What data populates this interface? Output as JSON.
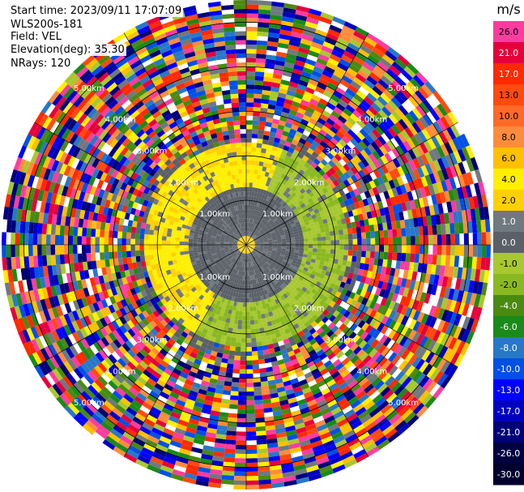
{
  "header": {
    "start_time": "Start time: 2023/09/11 17:07:09",
    "instrument": "WLS200s-181",
    "field": "Field: VEL",
    "elevation": "Elevation(deg): 35.30",
    "nrays": "NRays: 120"
  },
  "colorbar": {
    "unit": "m/s",
    "levels": [
      {
        "label": "26.0",
        "color": "#ff3ca0"
      },
      {
        "label": "21.0",
        "color": "#e6003c"
      },
      {
        "label": "17.0",
        "color": "#ff2a00"
      },
      {
        "label": "13.0",
        "color": "#ff4a10"
      },
      {
        "label": "10.0",
        "color": "#ff6a2a"
      },
      {
        "label": "8.0",
        "color": "#ff8c3c"
      },
      {
        "label": "6.0",
        "color": "#ffc000"
      },
      {
        "label": "4.0",
        "color": "#ffef00"
      },
      {
        "label": "2.0",
        "color": "#ffd000"
      },
      {
        "label": "1.0",
        "color": "#707880"
      },
      {
        "label": "0.0",
        "color": "#5a6068"
      },
      {
        "label": "-1.0",
        "color": "#a8c830"
      },
      {
        "label": "-2.0",
        "color": "#8ab820"
      },
      {
        "label": "-4.0",
        "color": "#4a8a10"
      },
      {
        "label": "-6.0",
        "color": "#1a8a1a"
      },
      {
        "label": "-8.0",
        "color": "#2878c8"
      },
      {
        "label": "-10.0",
        "color": "#0050e6"
      },
      {
        "label": "-13.0",
        "color": "#0000ff"
      },
      {
        "label": "-17.0",
        "color": "#0000c0"
      },
      {
        "label": "-21.0",
        "color": "#00007a"
      },
      {
        "label": "-26.0",
        "color": "#000040"
      },
      {
        "label": "-30.0",
        "color": "#000030"
      }
    ]
  },
  "chart_data": {
    "type": "heatmap",
    "projection": "polar-ppi",
    "field": "VEL",
    "units": "m/s",
    "nrays": 120,
    "range_rings_km": [
      1.0,
      2.0,
      3.0,
      4.0,
      5.0
    ],
    "ring_labels": [
      "1.00km",
      "2.00km",
      "3.00km",
      "4.00km",
      "5.00km"
    ],
    "max_range_km": 5.5,
    "radial_spokes": 12,
    "zones": [
      {
        "description": "near calm core, velocity ~0 to 1 m/s",
        "range_km": [
          0,
          1.4
        ],
        "dominant_value": 0.5
      },
      {
        "description": "receding (positive) winds north-west sector",
        "range_km": [
          0.8,
          2.3
        ],
        "sector_deg": [
          210,
          20
        ],
        "dominant_value": 2.0
      },
      {
        "description": "approaching (negative) winds south-east sector",
        "range_km": [
          0.8,
          2.3
        ],
        "sector_deg": [
          30,
          200
        ],
        "dominant_value": -1.5
      },
      {
        "description": "noise beyond ~2.3 km, random velocities",
        "range_km": [
          2.3,
          5.5
        ],
        "dominant_value": null
      }
    ],
    "colorbar_range": [
      -30.0,
      26.0
    ]
  }
}
